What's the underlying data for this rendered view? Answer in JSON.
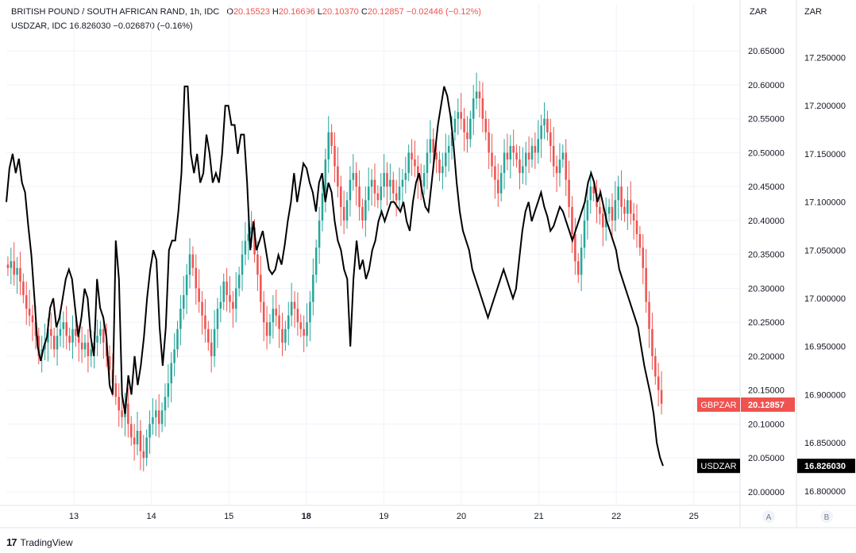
{
  "legend": {
    "symbol": "BRITISH POUND / SOUTH AFRICAN RAND, 1h, IDC",
    "o_label": "O",
    "o": "20.15523",
    "h_label": "H",
    "h": "20.16696",
    "l_label": "L",
    "l": "20.10370",
    "c_label": "C",
    "c": "20.12857",
    "chg": "−0.02446 (−0.12%)",
    "second": "USDZAR, IDC  16.826030  −0.026870 (−0.16%)"
  },
  "brand": "TradingView",
  "colors": {
    "up": "#26a69a",
    "down": "#ef5350",
    "line": "#000000",
    "grid": "#f0f3fa",
    "axis_text": "#131722"
  },
  "chart_data": {
    "type": "line",
    "interval": "1h",
    "x_ticks": [
      "13",
      "14",
      "15",
      "18",
      "19",
      "20",
      "21",
      "22",
      "25"
    ],
    "x_bold_ticks": [
      "18"
    ],
    "left_axis": {
      "unit": "ZAR",
      "ticks": [
        "20.65000",
        "20.60000",
        "20.55000",
        "20.50000",
        "20.45000",
        "20.40000",
        "20.35000",
        "20.30000",
        "20.25000",
        "20.20000",
        "20.15000",
        "20.10000",
        "20.05000",
        "20.00000"
      ],
      "range": [
        19.98,
        20.69
      ]
    },
    "right_axis": {
      "unit": "ZAR",
      "ticks": [
        "17.250000",
        "17.200000",
        "17.150000",
        "17.100000",
        "17.050000",
        "17.000000",
        "16.950000",
        "16.900000",
        "16.850000",
        "16.800000"
      ],
      "range": [
        16.785,
        17.285
      ]
    },
    "axis_buttons": [
      "A",
      "B"
    ],
    "series": [
      {
        "name": "GBPZAR",
        "style": "candles",
        "last_label": "GBPZAR",
        "last_value": "20.12857",
        "closes": [
          20.33,
          20.34,
          20.32,
          20.33,
          20.31,
          20.29,
          20.27,
          20.26,
          20.25,
          20.23,
          20.2,
          20.21,
          20.22,
          20.24,
          20.23,
          20.21,
          20.23,
          20.24,
          20.25,
          20.23,
          20.22,
          20.24,
          20.23,
          20.22,
          20.21,
          20.22,
          20.2,
          20.21,
          20.22,
          20.23,
          20.24,
          20.22,
          20.2,
          20.18,
          20.16,
          20.14,
          20.12,
          20.11,
          20.13,
          20.1,
          20.08,
          20.07,
          20.09,
          20.06,
          20.05,
          20.08,
          20.1,
          20.11,
          20.12,
          20.1,
          20.12,
          20.14,
          20.16,
          20.19,
          20.21,
          20.24,
          20.27,
          20.29,
          20.32,
          20.35,
          20.33,
          20.3,
          20.28,
          20.26,
          20.24,
          20.22,
          20.2,
          20.24,
          20.27,
          20.28,
          20.31,
          20.29,
          20.28,
          20.27,
          20.3,
          20.32,
          20.35,
          20.37,
          20.38,
          20.39,
          20.35,
          20.32,
          20.28,
          20.25,
          20.23,
          20.25,
          20.27,
          20.26,
          20.24,
          20.22,
          20.24,
          20.26,
          20.28,
          20.27,
          20.25,
          20.24,
          20.23,
          20.25,
          20.28,
          20.32,
          20.36,
          20.4,
          20.44,
          20.49,
          20.53,
          20.51,
          20.48,
          20.45,
          20.42,
          20.4,
          20.43,
          20.46,
          20.47,
          20.45,
          20.42,
          20.4,
          20.43,
          20.45,
          20.46,
          20.44,
          20.43,
          20.45,
          20.47,
          20.45,
          20.46,
          20.44,
          20.43,
          20.45,
          20.46,
          20.47,
          20.5,
          20.49,
          20.48,
          20.46,
          20.45,
          20.47,
          20.5,
          20.52,
          20.5,
          20.49,
          20.47,
          20.48,
          20.5,
          20.51,
          20.53,
          20.55,
          20.56,
          20.55,
          20.53,
          20.52,
          20.55,
          20.58,
          20.59,
          20.58,
          20.55,
          20.53,
          20.5,
          20.48,
          20.46,
          20.44,
          20.47,
          20.5,
          20.49,
          20.51,
          20.5,
          20.49,
          20.47,
          20.48,
          20.5,
          20.49,
          20.51,
          20.5,
          20.52,
          20.54,
          20.55,
          20.53,
          20.51,
          20.48,
          20.47,
          20.49,
          20.5,
          20.46,
          20.42,
          20.38,
          20.34,
          20.32,
          20.36,
          20.4,
          20.43,
          20.45,
          20.44,
          20.42,
          20.41,
          20.39,
          20.41,
          20.42,
          20.4,
          20.43,
          20.45,
          20.42,
          20.41,
          20.43,
          20.41,
          20.4,
          20.38,
          20.36,
          20.33,
          20.28,
          20.24,
          20.2,
          20.17,
          20.15,
          20.13
        ]
      },
      {
        "name": "USDZAR",
        "style": "line",
        "last_label": "USDZAR",
        "last_value": "16.826030",
        "values": [
          17.1,
          17.135,
          17.15,
          17.13,
          17.145,
          17.12,
          17.11,
          17.075,
          17.045,
          17.0,
          16.95,
          16.935,
          16.95,
          16.96,
          16.99,
          17.0,
          16.97,
          16.98,
          17.0,
          17.02,
          17.03,
          17.02,
          16.99,
          16.96,
          16.98,
          17.01,
          17.0,
          16.96,
          16.94,
          17.02,
          16.99,
          16.98,
          16.96,
          16.91,
          16.9,
          17.06,
          17.02,
          16.9,
          16.88,
          16.92,
          16.9,
          16.94,
          16.91,
          16.93,
          16.96,
          17.0,
          17.03,
          17.05,
          17.04,
          16.97,
          16.93,
          16.97,
          17.05,
          17.06,
          17.06,
          17.09,
          17.13,
          17.22,
          17.22,
          17.15,
          17.13,
          17.15,
          17.12,
          17.13,
          17.17,
          17.15,
          17.12,
          17.13,
          17.12,
          17.15,
          17.2,
          17.2,
          17.18,
          17.18,
          17.15,
          17.17,
          17.17,
          17.12,
          17.05,
          17.08,
          17.05,
          17.06,
          17.07,
          17.05,
          17.03,
          17.025,
          17.03,
          17.045,
          17.035,
          17.055,
          17.08,
          17.1,
          17.13,
          17.1,
          17.12,
          17.14,
          17.135,
          17.12,
          17.11,
          17.09,
          17.12,
          17.13,
          17.1,
          17.12,
          17.11,
          17.08,
          17.06,
          17.05,
          17.03,
          17.02,
          16.95,
          17.02,
          17.06,
          17.03,
          17.04,
          17.02,
          17.03,
          17.05,
          17.06,
          17.08,
          17.09,
          17.08,
          17.09,
          17.1,
          17.1,
          17.095,
          17.09,
          17.1,
          17.08,
          17.07,
          17.1,
          17.12,
          17.13,
          17.11,
          17.095,
          17.09,
          17.12,
          17.15,
          17.18,
          17.2,
          17.22,
          17.21,
          17.19,
          17.16,
          17.12,
          17.09,
          17.07,
          17.06,
          17.05,
          17.03,
          17.02,
          17.01,
          17.0,
          16.99,
          16.98,
          16.99,
          17.0,
          17.01,
          17.02,
          17.03,
          17.02,
          17.01,
          17.0,
          17.01,
          17.04,
          17.07,
          17.09,
          17.1,
          17.08,
          17.09,
          17.1,
          17.11,
          17.095,
          17.085,
          17.07,
          17.075,
          17.085,
          17.095,
          17.09,
          17.08,
          17.07,
          17.06,
          17.07,
          17.08,
          17.09,
          17.1,
          17.12,
          17.13,
          17.12,
          17.1,
          17.11,
          17.095,
          17.08,
          17.07,
          17.06,
          17.05,
          17.03,
          17.02,
          17.01,
          17.0,
          16.99,
          16.98,
          16.97,
          16.95,
          16.93,
          16.915,
          16.9,
          16.88,
          16.85,
          16.835,
          16.826
        ]
      }
    ]
  }
}
